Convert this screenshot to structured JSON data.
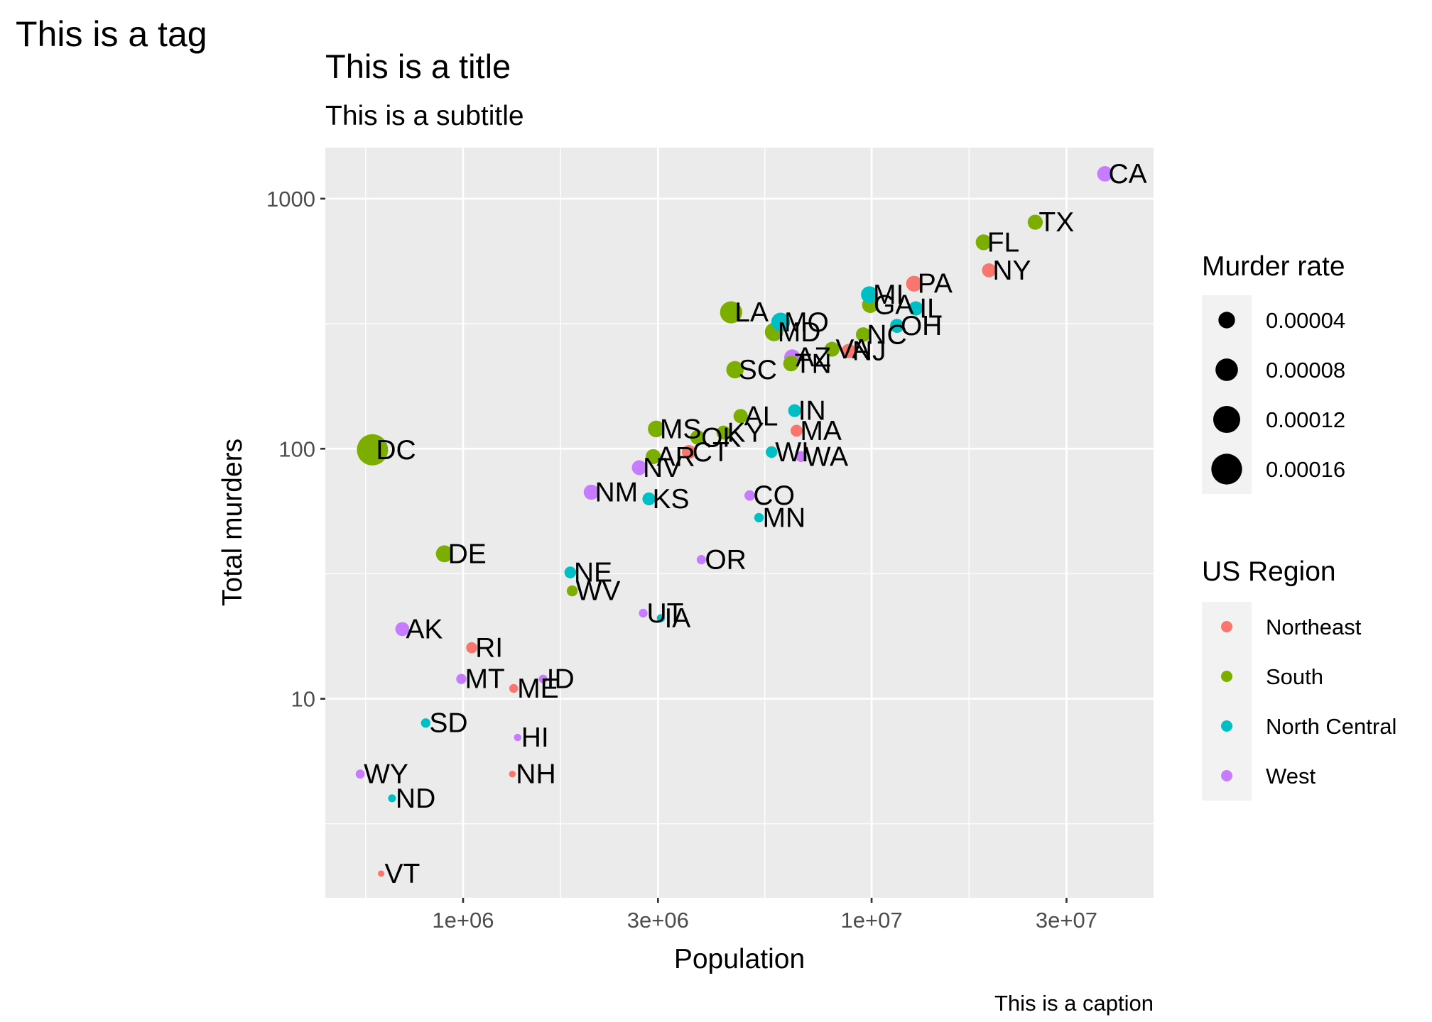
{
  "chart_data": {
    "type": "scatter",
    "tag": "This is a tag",
    "title": "This is a title",
    "subtitle": "This is a subtitle",
    "caption": "This is a caption",
    "xlabel": "Population",
    "ylabel": "Total murders",
    "x_scale": "log10",
    "y_scale": "log10",
    "xlim": [
      460000,
      49000000
    ],
    "ylim": [
      1.6,
      1600
    ],
    "x_ticks": [
      {
        "value": 1000000,
        "label": "1e+06"
      },
      {
        "value": 3000000,
        "label": "3e+06"
      },
      {
        "value": 10000000,
        "label": "1e+07"
      },
      {
        "value": 30000000,
        "label": "3e+07"
      }
    ],
    "y_ticks": [
      {
        "value": 10,
        "label": "10"
      },
      {
        "value": 100,
        "label": "100"
      },
      {
        "value": 1000,
        "label": "1000"
      }
    ],
    "grid": true,
    "background": "#EBEBEB",
    "legend_placement": "right",
    "size_legend": {
      "title": "Murder rate",
      "values": [
        4e-05,
        8e-05,
        0.00012,
        0.00016
      ],
      "labels": [
        "0.00004",
        "0.00008",
        "0.00012",
        "0.00016"
      ]
    },
    "color_legend": {
      "title": "US Region",
      "entries": [
        {
          "name": "Northeast",
          "color": "#F8766D"
        },
        {
          "name": "South",
          "color": "#7CAE00"
        },
        {
          "name": "North Central",
          "color": "#00BFC4"
        },
        {
          "name": "West",
          "color": "#C77CFF"
        }
      ]
    },
    "points": [
      {
        "abb": "AL",
        "region": "South",
        "population": 4780000,
        "total": 135
      },
      {
        "abb": "AK",
        "region": "West",
        "population": 710000,
        "total": 19
      },
      {
        "abb": "AZ",
        "region": "West",
        "population": 6390000,
        "total": 232
      },
      {
        "abb": "AR",
        "region": "South",
        "population": 2920000,
        "total": 93
      },
      {
        "abb": "CA",
        "region": "West",
        "population": 37250000,
        "total": 1257
      },
      {
        "abb": "CO",
        "region": "West",
        "population": 5030000,
        "total": 65
      },
      {
        "abb": "CT",
        "region": "Northeast",
        "population": 3570000,
        "total": 97
      },
      {
        "abb": "DE",
        "region": "South",
        "population": 900000,
        "total": 38
      },
      {
        "abb": "DC",
        "region": "South",
        "population": 600000,
        "total": 99
      },
      {
        "abb": "FL",
        "region": "South",
        "population": 18800000,
        "total": 669
      },
      {
        "abb": "GA",
        "region": "South",
        "population": 9920000,
        "total": 376
      },
      {
        "abb": "HI",
        "region": "West",
        "population": 1360000,
        "total": 7
      },
      {
        "abb": "ID",
        "region": "West",
        "population": 1570000,
        "total": 12
      },
      {
        "abb": "IL",
        "region": "North Central",
        "population": 12830000,
        "total": 364
      },
      {
        "abb": "IN",
        "region": "North Central",
        "population": 6480000,
        "total": 142
      },
      {
        "abb": "IA",
        "region": "North Central",
        "population": 3050000,
        "total": 21
      },
      {
        "abb": "KS",
        "region": "North Central",
        "population": 2850000,
        "total": 63
      },
      {
        "abb": "KY",
        "region": "South",
        "population": 4340000,
        "total": 116
      },
      {
        "abb": "LA",
        "region": "South",
        "population": 4530000,
        "total": 351
      },
      {
        "abb": "ME",
        "region": "Northeast",
        "population": 1330000,
        "total": 11
      },
      {
        "abb": "MD",
        "region": "South",
        "population": 5770000,
        "total": 293
      },
      {
        "abb": "MA",
        "region": "Northeast",
        "population": 6550000,
        "total": 118
      },
      {
        "abb": "MI",
        "region": "North Central",
        "population": 9880000,
        "total": 413
      },
      {
        "abb": "MN",
        "region": "North Central",
        "population": 5300000,
        "total": 53
      },
      {
        "abb": "MS",
        "region": "South",
        "population": 2970000,
        "total": 120
      },
      {
        "abb": "MO",
        "region": "North Central",
        "population": 5990000,
        "total": 321
      },
      {
        "abb": "MT",
        "region": "West",
        "population": 990000,
        "total": 12
      },
      {
        "abb": "NE",
        "region": "North Central",
        "population": 1830000,
        "total": 32
      },
      {
        "abb": "NV",
        "region": "West",
        "population": 2700000,
        "total": 84
      },
      {
        "abb": "NH",
        "region": "Northeast",
        "population": 1320000,
        "total": 5
      },
      {
        "abb": "NJ",
        "region": "Northeast",
        "population": 8790000,
        "total": 246
      },
      {
        "abb": "NM",
        "region": "West",
        "population": 2060000,
        "total": 67
      },
      {
        "abb": "NY",
        "region": "Northeast",
        "population": 19380000,
        "total": 517
      },
      {
        "abb": "NC",
        "region": "South",
        "population": 9540000,
        "total": 286
      },
      {
        "abb": "ND",
        "region": "North Central",
        "population": 670000,
        "total": 4
      },
      {
        "abb": "OH",
        "region": "North Central",
        "population": 11540000,
        "total": 310
      },
      {
        "abb": "OK",
        "region": "South",
        "population": 3750000,
        "total": 111
      },
      {
        "abb": "OR",
        "region": "West",
        "population": 3830000,
        "total": 36
      },
      {
        "abb": "PA",
        "region": "Northeast",
        "population": 12700000,
        "total": 457
      },
      {
        "abb": "RI",
        "region": "Northeast",
        "population": 1050000,
        "total": 16
      },
      {
        "abb": "SC",
        "region": "South",
        "population": 4630000,
        "total": 207
      },
      {
        "abb": "SD",
        "region": "North Central",
        "population": 810000,
        "total": 8
      },
      {
        "abb": "TN",
        "region": "South",
        "population": 6350000,
        "total": 219
      },
      {
        "abb": "TX",
        "region": "South",
        "population": 25150000,
        "total": 805
      },
      {
        "abb": "UT",
        "region": "West",
        "population": 2760000,
        "total": 22
      },
      {
        "abb": "VT",
        "region": "Northeast",
        "population": 630000,
        "total": 2
      },
      {
        "abb": "VA",
        "region": "South",
        "population": 8000000,
        "total": 250
      },
      {
        "abb": "WA",
        "region": "West",
        "population": 6720000,
        "total": 93
      },
      {
        "abb": "WV",
        "region": "South",
        "population": 1850000,
        "total": 27
      },
      {
        "abb": "WI",
        "region": "North Central",
        "population": 5690000,
        "total": 97
      },
      {
        "abb": "WY",
        "region": "West",
        "population": 560000,
        "total": 5
      }
    ]
  }
}
